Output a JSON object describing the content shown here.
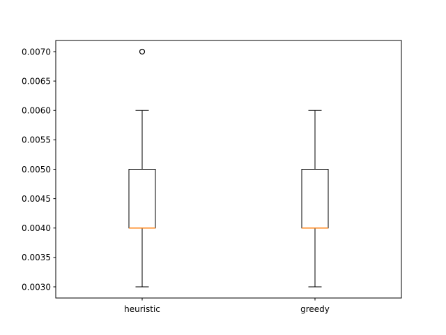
{
  "chart_data": {
    "type": "boxplot",
    "title": "",
    "xlabel": "",
    "ylabel": "",
    "categories": [
      "heuristic",
      "greedy"
    ],
    "boxes": [
      {
        "category": "heuristic",
        "whisker_low": 0.003,
        "q1": 0.004,
        "median": 0.004,
        "q3": 0.005,
        "whisker_high": 0.006,
        "outliers": [
          0.007
        ]
      },
      {
        "category": "greedy",
        "whisker_low": 0.003,
        "q1": 0.004,
        "median": 0.004,
        "q3": 0.005,
        "whisker_high": 0.006,
        "outliers": []
      }
    ],
    "ylim": [
      0.00281,
      0.00719
    ],
    "yticks": [
      0.003,
      0.0035,
      0.004,
      0.0045,
      0.005,
      0.0055,
      0.006,
      0.0065,
      0.007
    ],
    "ytick_labels": [
      "0.0030",
      "0.0035",
      "0.0040",
      "0.0045",
      "0.0050",
      "0.0055",
      "0.0060",
      "0.0065",
      "0.0070"
    ],
    "grid": false,
    "legend": "none",
    "colors": {
      "median": "#ff7f0e",
      "box": "#000000",
      "axes": "#000000"
    }
  }
}
